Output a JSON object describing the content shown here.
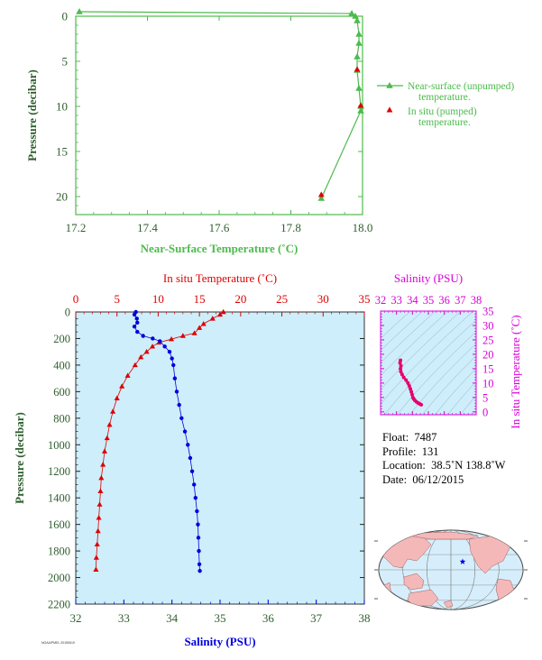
{
  "chart_data": [
    {
      "type": "line",
      "xlabel": "Near-Surface Temperature (˚C)",
      "ylabel": "Pressure (decibar)",
      "xlim": [
        17.2,
        18.0
      ],
      "ylim": [
        0,
        22
      ],
      "y_inverted": true,
      "x_ticks": [
        "17.2",
        "17.4",
        "17.6",
        "17.8",
        "18.0"
      ],
      "y_ticks": [
        "0",
        "5",
        "10",
        "15",
        "20"
      ],
      "legend_position": "right",
      "series": [
        {
          "name": "Near-surface (unpumped) temperature.",
          "color": "#4cbb4c",
          "marker": "triangle",
          "points": [
            [
              17.21,
              -0.5
            ],
            [
              17.97,
              -0.3
            ],
            [
              17.98,
              0.0
            ],
            [
              17.985,
              0.5
            ],
            [
              17.99,
              2.0
            ],
            [
              17.99,
              3.0
            ],
            [
              17.985,
              4.5
            ],
            [
              17.985,
              6.0
            ],
            [
              17.99,
              8.0
            ],
            [
              17.995,
              10.0
            ],
            [
              17.995,
              10.5
            ],
            [
              17.885,
              20.2
            ]
          ]
        },
        {
          "name": "In situ (pumped) temperature.",
          "color": "#dd0000",
          "marker": "triangle",
          "points": [
            [
              17.985,
              5.9
            ],
            [
              17.995,
              9.9
            ],
            [
              17.885,
              19.8
            ]
          ]
        }
      ]
    },
    {
      "type": "line",
      "xlabel": "Salinity (PSU)",
      "x2label": "In situ Temperature (˚C)",
      "ylabel": "Pressure (decibar)",
      "xlim": [
        32,
        38
      ],
      "x2lim": [
        0,
        35
      ],
      "ylim": [
        0,
        2200
      ],
      "y_inverted": true,
      "x_ticks": [
        "32",
        "33",
        "34",
        "35",
        "36",
        "37",
        "38"
      ],
      "x2_ticks": [
        "0",
        "5",
        "10",
        "15",
        "20",
        "25",
        "30",
        "35"
      ],
      "y_ticks": [
        "0",
        "200",
        "400",
        "600",
        "800",
        "1000",
        "1200",
        "1400",
        "1600",
        "1800",
        "2000",
        "2200"
      ],
      "background": "#cdeefa",
      "series": [
        {
          "name": "Temperature",
          "color": "#dd0000",
          "marker": "triangle",
          "points": [
            [
              17.9,
              0
            ],
            [
              17.5,
              20
            ],
            [
              16.6,
              50
            ],
            [
              15.5,
              90
            ],
            [
              15.0,
              120
            ],
            [
              14.4,
              160
            ],
            [
              13.0,
              180
            ],
            [
              11.6,
              205
            ],
            [
              10.1,
              230
            ],
            [
              9.3,
              260
            ],
            [
              8.6,
              300
            ],
            [
              7.9,
              340
            ],
            [
              7.2,
              400
            ],
            [
              6.3,
              480
            ],
            [
              5.6,
              560
            ],
            [
              5.0,
              650
            ],
            [
              4.5,
              750
            ],
            [
              4.1,
              850
            ],
            [
              3.8,
              950
            ],
            [
              3.5,
              1050
            ],
            [
              3.3,
              1150
            ],
            [
              3.1,
              1250
            ],
            [
              3.0,
              1350
            ],
            [
              2.9,
              1450
            ],
            [
              2.8,
              1550
            ],
            [
              2.7,
              1650
            ],
            [
              2.6,
              1750
            ],
            [
              2.5,
              1850
            ],
            [
              2.45,
              1940
            ]
          ]
        },
        {
          "name": "Salinity",
          "color": "#0000dd",
          "marker": "circle",
          "points": [
            [
              33.25,
              0
            ],
            [
              33.22,
              20
            ],
            [
              33.27,
              50
            ],
            [
              33.28,
              80
            ],
            [
              33.22,
              110
            ],
            [
              33.28,
              150
            ],
            [
              33.4,
              180
            ],
            [
              33.6,
              200
            ],
            [
              33.75,
              220
            ],
            [
              33.85,
              260
            ],
            [
              33.95,
              300
            ],
            [
              34.0,
              350
            ],
            [
              34.03,
              400
            ],
            [
              34.06,
              500
            ],
            [
              34.1,
              600
            ],
            [
              34.15,
              700
            ],
            [
              34.2,
              800
            ],
            [
              34.27,
              900
            ],
            [
              34.33,
              1000
            ],
            [
              34.38,
              1100
            ],
            [
              34.42,
              1200
            ],
            [
              34.46,
              1300
            ],
            [
              34.49,
              1400
            ],
            [
              34.52,
              1500
            ],
            [
              34.54,
              1600
            ],
            [
              34.55,
              1700
            ],
            [
              34.56,
              1800
            ],
            [
              34.57,
              1900
            ],
            [
              34.58,
              1950
            ]
          ]
        }
      ]
    },
    {
      "type": "scatter",
      "xlabel": "Salinity (PSU)",
      "ylabel": "In situ Temperature (˚C)",
      "xlim": [
        32,
        38
      ],
      "ylim": [
        -1,
        35
      ],
      "x_ticks": [
        "32",
        "33",
        "34",
        "35",
        "36",
        "37",
        "38"
      ],
      "y_ticks": [
        "0",
        "5",
        "10",
        "15",
        "20",
        "25",
        "30",
        "35"
      ],
      "color": "#e8006e",
      "background": "#cdeefa",
      "points": [
        [
          33.25,
          17.9
        ],
        [
          33.22,
          17.0
        ],
        [
          33.28,
          16.0
        ],
        [
          33.25,
          15.0
        ],
        [
          33.27,
          14.0
        ],
        [
          33.35,
          13.0
        ],
        [
          33.45,
          12.0
        ],
        [
          33.6,
          11.0
        ],
        [
          33.72,
          10.0
        ],
        [
          33.8,
          9.0
        ],
        [
          33.87,
          8.0
        ],
        [
          33.93,
          7.0
        ],
        [
          33.98,
          6.0
        ],
        [
          34.03,
          5.0
        ],
        [
          34.08,
          4.5
        ],
        [
          34.15,
          4.0
        ],
        [
          34.25,
          3.5
        ],
        [
          34.35,
          3.1
        ],
        [
          34.45,
          2.8
        ],
        [
          34.55,
          2.5
        ]
      ]
    }
  ],
  "meta": {
    "float_label": "Float:",
    "float_value": "7487",
    "profile_label": "Profile:",
    "profile_value": "131",
    "location_label": "Location:",
    "location_value": "38.5˚N  138.8˚W",
    "date_label": "Date:",
    "date_value": "06/12/2015",
    "credit": "NOAA/PMEL 20150619"
  },
  "colors": {
    "axis_green": "#2e5e2e",
    "near_surface": "#4cbb4c",
    "temperature": "#dd0000",
    "salinity": "#0000dd",
    "ts_magenta": "#d800d8",
    "map_ocean": "#d6eefb",
    "map_land": "#f5b8b8"
  }
}
